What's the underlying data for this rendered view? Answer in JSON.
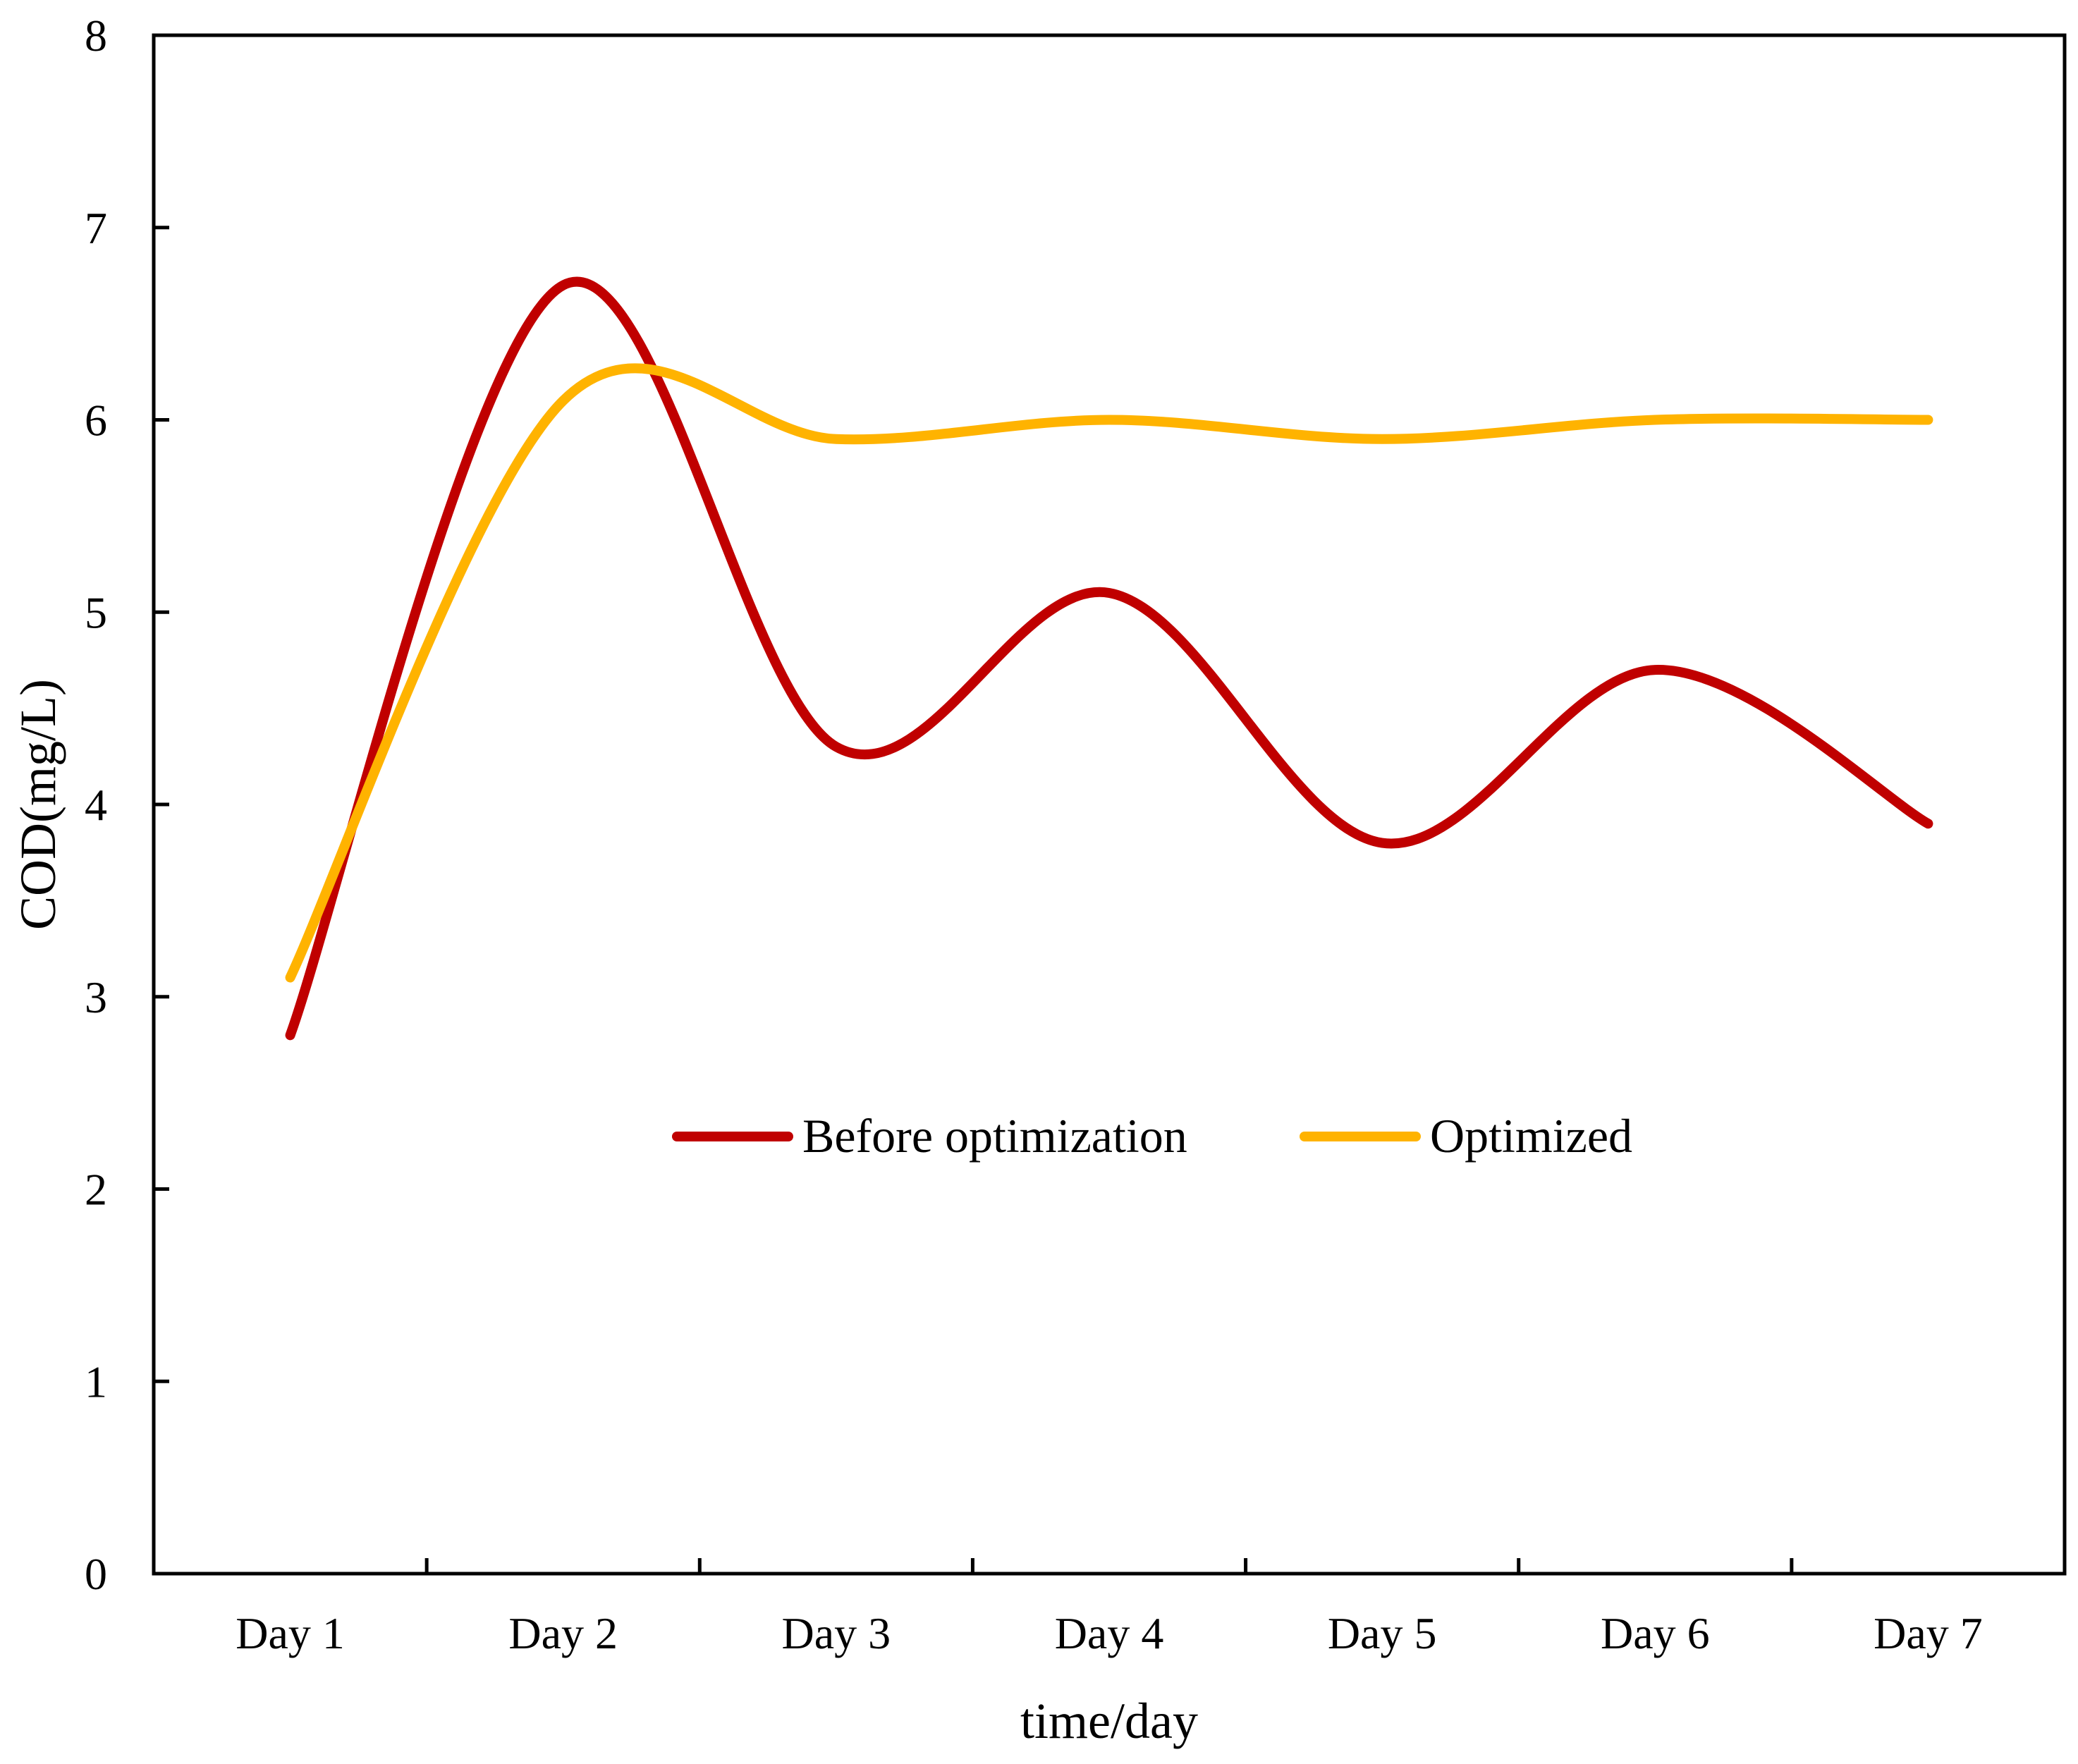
{
  "chart_data": {
    "type": "line",
    "smooth": true,
    "title": "",
    "xlabel": "time/day",
    "ylabel": "COD(mg/L)",
    "categories": [
      "Day 1",
      "Day 2",
      "Day 3",
      "Day 4",
      "Day 5",
      "Day 6",
      "Day 7"
    ],
    "ylim": [
      0,
      8
    ],
    "yticks": [
      "0",
      "1",
      "2",
      "3",
      "4",
      "5",
      "6",
      "7",
      "8"
    ],
    "grid": false,
    "legend_position": "center",
    "series": [
      {
        "name": "Before optimization",
        "color": "#C00000",
        "values": [
          2.8,
          6.7,
          4.3,
          5.1,
          3.8,
          4.7,
          3.9
        ]
      },
      {
        "name": "Optimized",
        "color": "#FFB300",
        "values": [
          3.1,
          6.1,
          5.9,
          6.0,
          5.9,
          6.0,
          6.0
        ]
      }
    ]
  }
}
